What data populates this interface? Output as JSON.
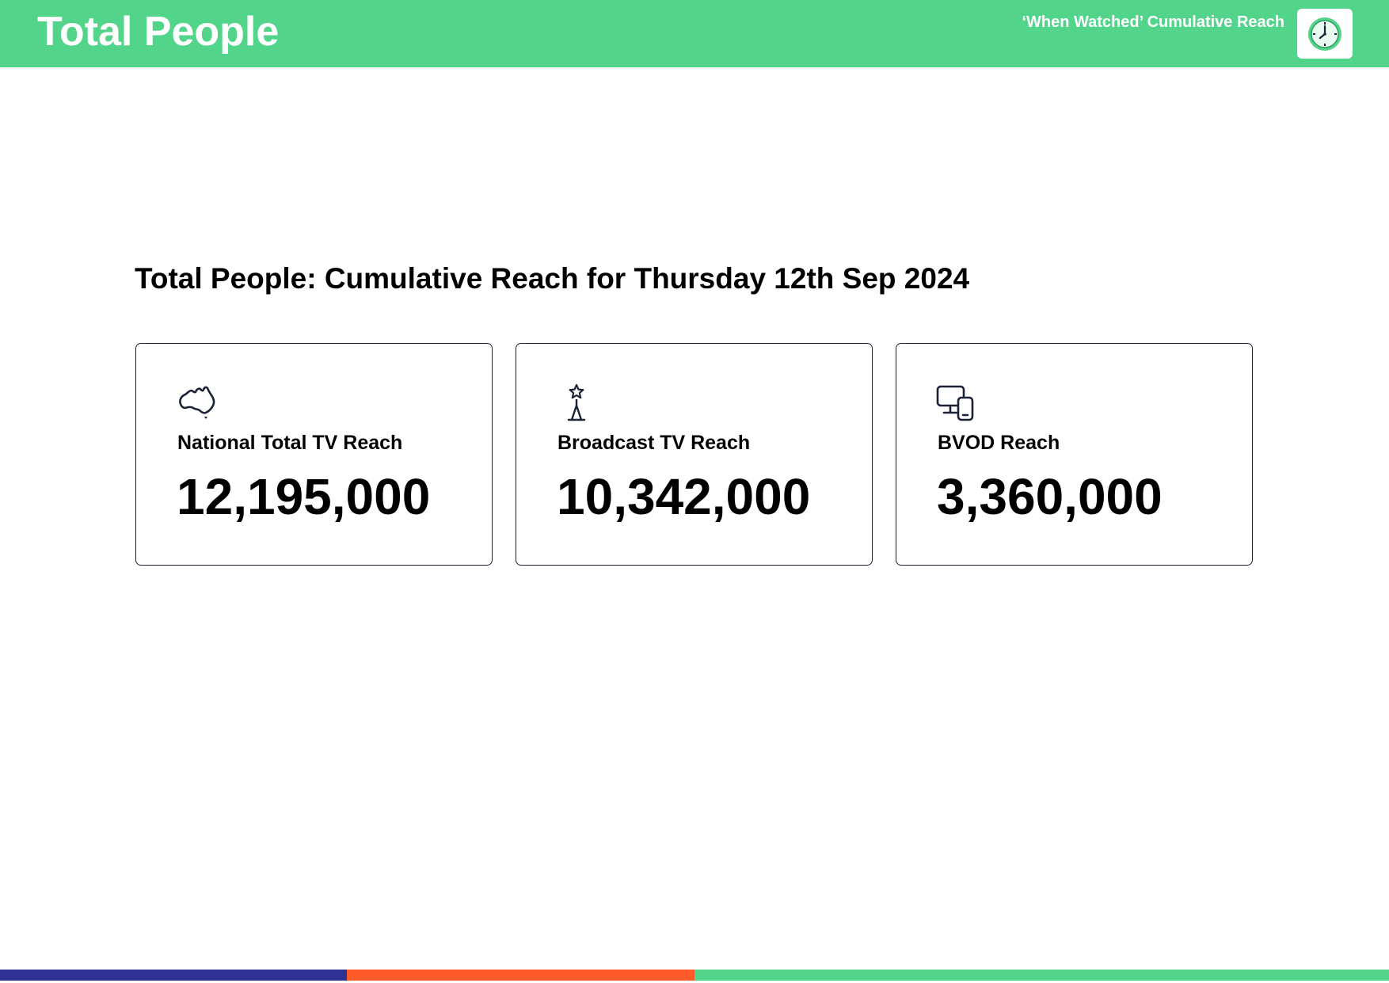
{
  "header": {
    "title": "Total People",
    "subtitle": "‘When Watched’ Cumulative Reach",
    "badge_icon": "clock-icon",
    "background_color": "#52d48a"
  },
  "main": {
    "heading": "Total People: Cumulative Reach for Thursday 12th Sep 2024"
  },
  "cards": [
    {
      "icon": "australia-map-icon",
      "label": "National Total TV Reach",
      "value": "12,195,000"
    },
    {
      "icon": "broadcast-tower-icon",
      "label": "Broadcast TV Reach",
      "value": "10,342,000"
    },
    {
      "icon": "devices-icon",
      "label": "BVOD Reach",
      "value": "3,360,000"
    }
  ],
  "footer": {
    "stripe_colors": [
      "#2e3192",
      "#ff5a2a",
      "#52d48a"
    ]
  }
}
